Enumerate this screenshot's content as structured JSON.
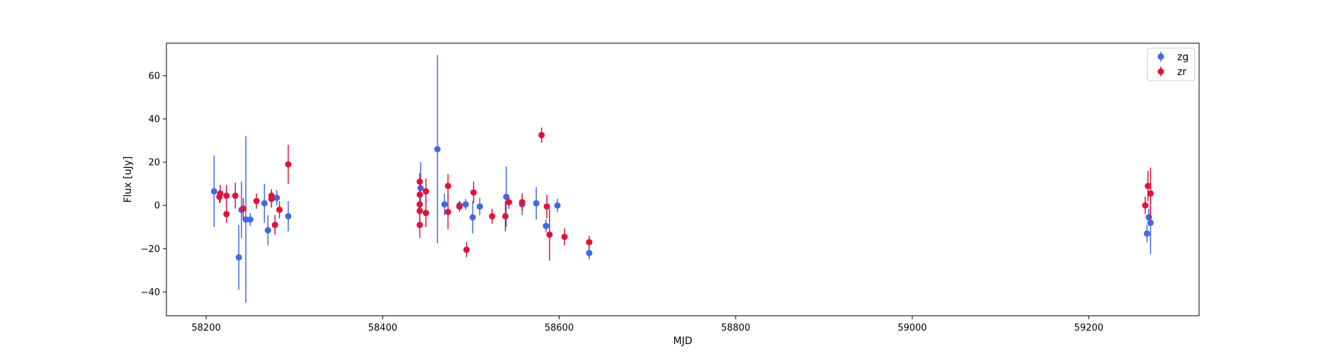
{
  "chart_data": {
    "type": "scatter",
    "xlabel": "MJD",
    "ylabel": "Flux [uJy]",
    "xlim": [
      58155,
      59325
    ],
    "ylim": [
      -51,
      75
    ],
    "xticks": [
      58200,
      58400,
      58600,
      58800,
      59000,
      59200
    ],
    "yticks": [
      -40,
      -20,
      0,
      20,
      40,
      60
    ],
    "legend_position": "top-right",
    "grid": false,
    "series": [
      {
        "name": "zg",
        "color": "#4169e1",
        "points": [
          {
            "x": 58209,
            "y": 6.5,
            "err": 16.5
          },
          {
            "x": 58237,
            "y": -24,
            "err": 15
          },
          {
            "x": 58240,
            "y": -2,
            "err": 13
          },
          {
            "x": 58245,
            "y": -6.5,
            "err": 38.5
          },
          {
            "x": 58250,
            "y": -6.5,
            "err": 3
          },
          {
            "x": 58266,
            "y": 1,
            "err": 9
          },
          {
            "x": 58270,
            "y": -11.5,
            "err": 7
          },
          {
            "x": 58280,
            "y": 3.5,
            "err": 3.5
          },
          {
            "x": 58293,
            "y": -5,
            "err": 7
          },
          {
            "x": 58443,
            "y": 8,
            "err": 12
          },
          {
            "x": 58462,
            "y": 26,
            "err": 43.5
          },
          {
            "x": 58470,
            "y": 0.5,
            "err": 5
          },
          {
            "x": 58487,
            "y": 0,
            "err": 2
          },
          {
            "x": 58494,
            "y": 0.5,
            "err": 2.5
          },
          {
            "x": 58502,
            "y": -5.5,
            "err": 7.5
          },
          {
            "x": 58510,
            "y": -0.5,
            "err": 4
          },
          {
            "x": 58540,
            "y": 4,
            "err": 14
          },
          {
            "x": 58558,
            "y": 0.5,
            "err": 5
          },
          {
            "x": 58574,
            "y": 1,
            "err": 7.5
          },
          {
            "x": 58585,
            "y": -9.5,
            "err": 3
          },
          {
            "x": 58598,
            "y": 0,
            "err": 3
          },
          {
            "x": 58634,
            "y": -22,
            "err": 3
          },
          {
            "x": 59266,
            "y": -13,
            "err": 4
          },
          {
            "x": 59268,
            "y": -5.5,
            "err": 4
          },
          {
            "x": 59270,
            "y": -8,
            "err": 14.5
          }
        ]
      },
      {
        "name": "zr",
        "color": "#dc143c",
        "points": [
          {
            "x": 58215,
            "y": 4,
            "err": 3
          },
          {
            "x": 58216,
            "y": 5.5,
            "err": 4
          },
          {
            "x": 58223,
            "y": 4.5,
            "err": 5
          },
          {
            "x": 58223,
            "y": -4,
            "err": 4
          },
          {
            "x": 58233,
            "y": 4.5,
            "err": 6
          },
          {
            "x": 58242,
            "y": -1.5,
            "err": 5
          },
          {
            "x": 58257,
            "y": 2,
            "err": 3.5
          },
          {
            "x": 58274,
            "y": 3,
            "err": 4
          },
          {
            "x": 58274,
            "y": 4.5,
            "err": 3
          },
          {
            "x": 58278,
            "y": -9,
            "err": 4.5
          },
          {
            "x": 58283,
            "y": -2,
            "err": 4
          },
          {
            "x": 58293,
            "y": 19,
            "err": 9
          },
          {
            "x": 58442,
            "y": 11,
            "err": 4
          },
          {
            "x": 58442,
            "y": 5,
            "err": 6
          },
          {
            "x": 58442,
            "y": 0.5,
            "err": 5
          },
          {
            "x": 58442,
            "y": -2.5,
            "err": 5
          },
          {
            "x": 58442,
            "y": -9,
            "err": 6
          },
          {
            "x": 58449,
            "y": 6.5,
            "err": 6
          },
          {
            "x": 58449,
            "y": -3.5,
            "err": 6.5
          },
          {
            "x": 58474,
            "y": 9,
            "err": 5.5
          },
          {
            "x": 58474,
            "y": -3,
            "err": 8
          },
          {
            "x": 58487,
            "y": -0.5,
            "err": 2.5
          },
          {
            "x": 58495,
            "y": -20.5,
            "err": 3.5
          },
          {
            "x": 58503,
            "y": 6,
            "err": 5
          },
          {
            "x": 58524,
            "y": -5,
            "err": 3.5
          },
          {
            "x": 58539,
            "y": -5,
            "err": 7
          },
          {
            "x": 58543,
            "y": 1.5,
            "err": 3
          },
          {
            "x": 58558,
            "y": 1.5,
            "err": 4
          },
          {
            "x": 58580,
            "y": 32.5,
            "err": 3.5
          },
          {
            "x": 58586,
            "y": -0.5,
            "err": 5.5
          },
          {
            "x": 58589,
            "y": -13.5,
            "err": 12
          },
          {
            "x": 58606,
            "y": -14.5,
            "err": 4
          },
          {
            "x": 58634,
            "y": -17,
            "err": 3
          },
          {
            "x": 59264,
            "y": 0,
            "err": 4
          },
          {
            "x": 59267,
            "y": 9,
            "err": 7
          },
          {
            "x": 59270,
            "y": 5.5,
            "err": 12
          }
        ]
      }
    ]
  }
}
